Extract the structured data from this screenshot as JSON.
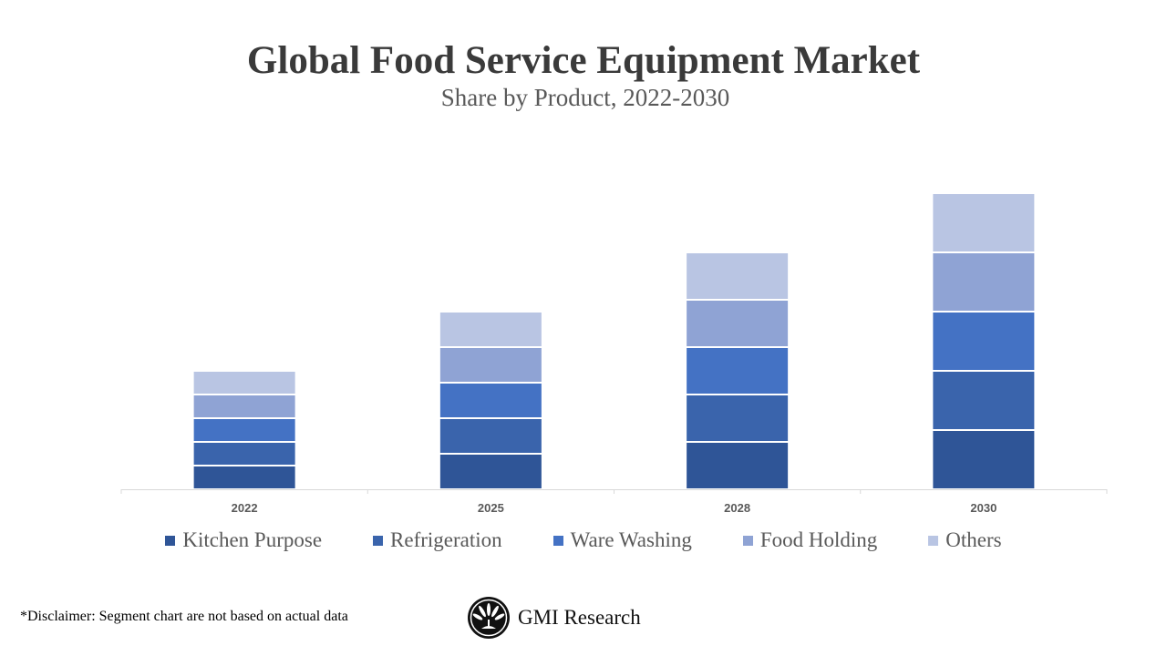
{
  "chart_data": {
    "type": "bar",
    "stacked": true,
    "title": "Global Food Service Equipment Market",
    "subtitle": "Share by Product, 2022-2030",
    "categories": [
      "2022",
      "2025",
      "2028",
      "2030"
    ],
    "series": [
      {
        "name": "Kitchen Purpose",
        "color": "#2F5597",
        "values": [
          1,
          1.5,
          2,
          2.5
        ]
      },
      {
        "name": "Refrigeration",
        "color": "#3A64AC",
        "values": [
          1,
          1.5,
          2,
          2.5
        ]
      },
      {
        "name": "Ware Washing",
        "color": "#4472C4",
        "values": [
          1,
          1.5,
          2,
          2.5
        ]
      },
      {
        "name": "Food Holding",
        "color": "#8FA3D4",
        "values": [
          1,
          1.5,
          2,
          2.5
        ]
      },
      {
        "name": "Others",
        "color": "#B9C5E3",
        "values": [
          1,
          1.5,
          2,
          2.5
        ]
      }
    ],
    "xlabel": "",
    "ylabel": "",
    "y_axis_visible": false,
    "grid": false,
    "legend_position": "bottom"
  },
  "disclaimer": "*Disclaimer:   Segment chart are not based on actual data",
  "logo_text": "GMI Research"
}
